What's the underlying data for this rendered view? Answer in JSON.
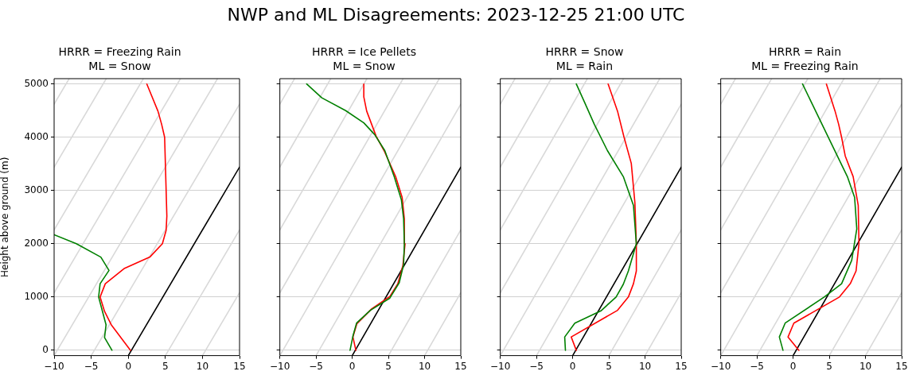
{
  "chart_data": [
    {
      "type": "line",
      "title": "HRRR = Freezing Rain\nML = Snow",
      "annotations": [
        "NWP and ML Disagreements: 2023-12-25 21:00 UTC"
      ],
      "ylabel": "Height above ground (m)",
      "xlim": [
        -10,
        15
      ],
      "ylim": [
        -100,
        5100
      ],
      "xticks": [
        -10,
        -5,
        0,
        5,
        10,
        15
      ],
      "yticks": [
        0,
        1000,
        2000,
        3000,
        4000,
        5000
      ],
      "grid": "y",
      "legend": false,
      "marker": "none",
      "line_style": "solid",
      "series": [
        {
          "type": "line",
          "color": "#d9d9d9",
          "x": [
            -10,
            -7.97
          ],
          "values": [
            4620,
            5100
          ]
        },
        {
          "type": "line",
          "color": "#d9d9d9",
          "x": [
            -10,
            -2.97
          ],
          "values": [
            3440,
            5100
          ]
        },
        {
          "type": "line",
          "color": "#d9d9d9",
          "x": [
            -10,
            2.03
          ],
          "values": [
            2260,
            5100
          ]
        },
        {
          "type": "line",
          "color": "#d9d9d9",
          "x": [
            -10,
            7.03
          ],
          "values": [
            1080,
            5100
          ]
        },
        {
          "type": "line",
          "color": "#d9d9d9",
          "x": [
            -10,
            12.03
          ],
          "values": [
            -100,
            5100
          ]
        },
        {
          "type": "line",
          "color": "#d9d9d9",
          "x": [
            -5,
            15
          ],
          "values": [
            -100,
            4620
          ]
        },
        {
          "type": "line",
          "color": "#d9d9d9",
          "x": [
            5,
            15
          ],
          "values": [
            -100,
            2260
          ]
        },
        {
          "type": "line",
          "color": "#d9d9d9",
          "x": [
            10,
            15
          ],
          "values": [
            -100,
            1080
          ]
        },
        {
          "type": "line",
          "color": "#000000",
          "x": [
            0,
            15
          ],
          "values": [
            -100,
            3440
          ]
        },
        {
          "type": "line",
          "color": "#ff0000",
          "x": [
            0.3,
            -2.3,
            -3.2,
            -3.8,
            -3.1,
            -0.5,
            2.9,
            4.6,
            5.1,
            5.2,
            4.9,
            4.5,
            4.0,
            2.5
          ],
          "values": [
            0,
            480,
            730,
            1000,
            1250,
            1540,
            1750,
            2000,
            2250,
            2520,
            4000,
            4240,
            4490,
            5000
          ]
        },
        {
          "type": "line",
          "color": "#008000",
          "x": [
            -2.2,
            -3.2,
            -3.0,
            -4.0,
            -3.8,
            -2.6,
            -3.7,
            -7.0,
            -10
          ],
          "values": [
            0,
            240,
            480,
            1000,
            1250,
            1500,
            1750,
            2000,
            2170
          ]
        }
      ]
    },
    {
      "type": "line",
      "title": "HRRR = Ice Pellets\nML = Snow",
      "xlim": [
        -10,
        15
      ],
      "ylim": [
        -100,
        5100
      ],
      "xticks": [
        -10,
        -5,
        0,
        5,
        10,
        15
      ],
      "yticks": [
        0,
        1000,
        2000,
        3000,
        4000,
        5000
      ],
      "grid": "y",
      "legend": false,
      "marker": "none",
      "line_style": "solid",
      "tick_labels": "x",
      "series": [
        {
          "type": "line",
          "color": "#d9d9d9",
          "x": [
            -10,
            -7.97
          ],
          "values": [
            4620,
            5100
          ]
        },
        {
          "type": "line",
          "color": "#d9d9d9",
          "x": [
            -10,
            -2.97
          ],
          "values": [
            3440,
            5100
          ]
        },
        {
          "type": "line",
          "color": "#d9d9d9",
          "x": [
            -10,
            2.03
          ],
          "values": [
            2260,
            5100
          ]
        },
        {
          "type": "line",
          "color": "#d9d9d9",
          "x": [
            -10,
            7.03
          ],
          "values": [
            1080,
            5100
          ]
        },
        {
          "type": "line",
          "color": "#d9d9d9",
          "x": [
            -10,
            12.03
          ],
          "values": [
            -100,
            5100
          ]
        },
        {
          "type": "line",
          "color": "#d9d9d9",
          "x": [
            -5,
            15
          ],
          "values": [
            -100,
            4620
          ]
        },
        {
          "type": "line",
          "color": "#d9d9d9",
          "x": [
            5,
            15
          ],
          "values": [
            -100,
            2260
          ]
        },
        {
          "type": "line",
          "color": "#d9d9d9",
          "x": [
            10,
            15
          ],
          "values": [
            -100,
            1080
          ]
        },
        {
          "type": "line",
          "color": "#000000",
          "x": [
            0,
            15
          ],
          "values": [
            -100,
            3440
          ]
        },
        {
          "type": "line",
          "color": "#ff0000",
          "x": [
            0.5,
            0.1,
            0.65,
            2.7,
            5.2,
            6.3,
            7.0,
            7.3,
            7.2,
            6.9,
            6.0,
            4.4,
            3.3,
            2.0,
            1.6,
            1.6
          ],
          "values": [
            0,
            250,
            500,
            780,
            1010,
            1250,
            1590,
            2000,
            2470,
            2870,
            3260,
            3750,
            4020,
            4490,
            4760,
            5000
          ]
        },
        {
          "type": "line",
          "color": "#008000",
          "x": [
            -0.3,
            0.1,
            0.6,
            2.5,
            5.2,
            6.5,
            7.1,
            7.2,
            7.1,
            6.8,
            5.8,
            4.5,
            3.1,
            1.6,
            -0.9,
            -4.2,
            -6.3
          ],
          "values": [
            0,
            270,
            510,
            750,
            980,
            1270,
            1610,
            2000,
            2470,
            2820,
            3260,
            3750,
            4050,
            4270,
            4500,
            4740,
            5000
          ]
        }
      ]
    },
    {
      "type": "line",
      "title": "HRRR = Snow\nML = Rain",
      "xlim": [
        -10,
        15
      ],
      "ylim": [
        -100,
        5100
      ],
      "xticks": [
        -10,
        -5,
        0,
        5,
        10,
        15
      ],
      "yticks": [
        0,
        1000,
        2000,
        3000,
        4000,
        5000
      ],
      "grid": "y",
      "legend": false,
      "marker": "none",
      "line_style": "solid",
      "tick_labels": "x",
      "series": [
        {
          "type": "line",
          "color": "#d9d9d9",
          "x": [
            -10,
            -7.97
          ],
          "values": [
            4620,
            5100
          ]
        },
        {
          "type": "line",
          "color": "#d9d9d9",
          "x": [
            -10,
            -2.97
          ],
          "values": [
            3440,
            5100
          ]
        },
        {
          "type": "line",
          "color": "#d9d9d9",
          "x": [
            -10,
            2.03
          ],
          "values": [
            2260,
            5100
          ]
        },
        {
          "type": "line",
          "color": "#d9d9d9",
          "x": [
            -10,
            7.03
          ],
          "values": [
            1080,
            5100
          ]
        },
        {
          "type": "line",
          "color": "#d9d9d9",
          "x": [
            -10,
            12.03
          ],
          "values": [
            -100,
            5100
          ]
        },
        {
          "type": "line",
          "color": "#d9d9d9",
          "x": [
            -5,
            15
          ],
          "values": [
            -100,
            4620
          ]
        },
        {
          "type": "line",
          "color": "#d9d9d9",
          "x": [
            5,
            15
          ],
          "values": [
            -100,
            2260
          ]
        },
        {
          "type": "line",
          "color": "#d9d9d9",
          "x": [
            10,
            15
          ],
          "values": [
            -100,
            1080
          ]
        },
        {
          "type": "line",
          "color": "#000000",
          "x": [
            0,
            15
          ],
          "values": [
            -100,
            3440
          ]
        },
        {
          "type": "line",
          "color": "#ff0000",
          "x": [
            0.5,
            -0.2,
            6.2,
            7.7,
            8.4,
            8.8,
            8.8,
            8.6,
            8.1,
            7.1,
            6.2,
            4.9
          ],
          "values": [
            0,
            250,
            750,
            1000,
            1250,
            1490,
            2000,
            2770,
            3510,
            4000,
            4490,
            5000
          ]
        },
        {
          "type": "line",
          "color": "#008000",
          "x": [
            -1.0,
            -1.1,
            0.3,
            3.9,
            6.0,
            7.0,
            7.7,
            8.8,
            8.4,
            7.0,
            4.8,
            3.0,
            1.7,
            0.5
          ],
          "values": [
            0,
            250,
            510,
            740,
            1000,
            1240,
            1490,
            2000,
            2720,
            3260,
            3750,
            4240,
            4640,
            5000
          ]
        }
      ]
    },
    {
      "type": "line",
      "title": "HRRR = Rain\nML = Freezing Rain",
      "xlim": [
        -10,
        15
      ],
      "ylim": [
        -100,
        5100
      ],
      "xticks": [
        -10,
        -5,
        0,
        5,
        10,
        15
      ],
      "yticks": [
        0,
        1000,
        2000,
        3000,
        4000,
        5000
      ],
      "grid": "y",
      "legend": false,
      "marker": "none",
      "line_style": "solid",
      "tick_labels": "x",
      "series": [
        {
          "type": "line",
          "color": "#d9d9d9",
          "x": [
            -10,
            -7.97
          ],
          "values": [
            4620,
            5100
          ]
        },
        {
          "type": "line",
          "color": "#d9d9d9",
          "x": [
            -10,
            -2.97
          ],
          "values": [
            3440,
            5100
          ]
        },
        {
          "type": "line",
          "color": "#d9d9d9",
          "x": [
            -10,
            2.03
          ],
          "values": [
            2260,
            5100
          ]
        },
        {
          "type": "line",
          "color": "#d9d9d9",
          "x": [
            -10,
            7.03
          ],
          "values": [
            1080,
            5100
          ]
        },
        {
          "type": "line",
          "color": "#d9d9d9",
          "x": [
            -10,
            12.03
          ],
          "values": [
            -100,
            5100
          ]
        },
        {
          "type": "line",
          "color": "#d9d9d9",
          "x": [
            -5,
            15
          ],
          "values": [
            -100,
            4620
          ]
        },
        {
          "type": "line",
          "color": "#d9d9d9",
          "x": [
            5,
            15
          ],
          "values": [
            -100,
            2260
          ]
        },
        {
          "type": "line",
          "color": "#d9d9d9",
          "x": [
            10,
            15
          ],
          "values": [
            -100,
            1080
          ]
        },
        {
          "type": "line",
          "color": "#000000",
          "x": [
            0,
            15
          ],
          "values": [
            -100,
            3440
          ]
        },
        {
          "type": "line",
          "color": "#ff0000",
          "x": [
            0.8,
            -0.7,
            0.1,
            6.4,
            7.9,
            8.7,
            9.1,
            9.0,
            8.3,
            7.2,
            6.7,
            6.3,
            5.8,
            4.6
          ],
          "values": [
            0,
            250,
            510,
            1000,
            1250,
            1490,
            2000,
            2720,
            3260,
            3650,
            4000,
            4240,
            4490,
            5000
          ]
        },
        {
          "type": "line",
          "color": "#008000",
          "x": [
            -1.4,
            -1.9,
            -1.1,
            4.3,
            6.7,
            8.1,
            8.8,
            8.5,
            7.5,
            1.3
          ],
          "values": [
            0,
            250,
            510,
            1000,
            1250,
            1690,
            2280,
            2870,
            3260,
            5000
          ]
        }
      ]
    }
  ]
}
